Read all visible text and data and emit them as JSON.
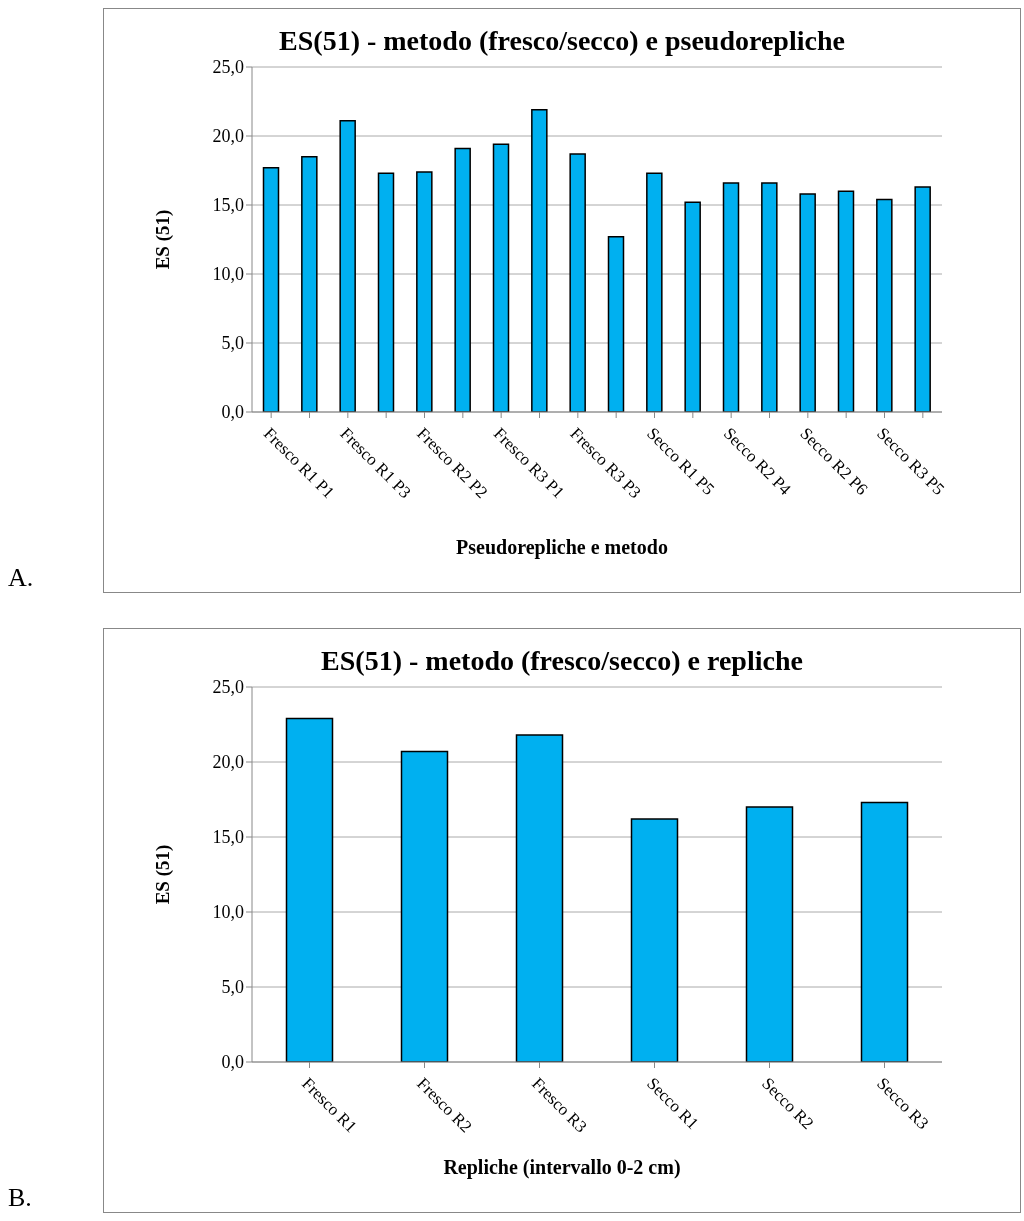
{
  "chart_data": [
    {
      "type": "bar",
      "title": "ES(51) - metodo (fresco/secco) e pseudorepliche",
      "xlabel": "Pseudorepliche e metodo",
      "ylabel": "ES (51)",
      "annotations": [
        "A."
      ],
      "categories": [
        "Fresco R1 P1",
        null,
        "Fresco R1 P3",
        null,
        "Fresco R2 P2",
        null,
        "Fresco R3 P1",
        null,
        "Fresco R3 P3",
        null,
        "Secco R1 P5",
        null,
        "Secco R2 P4",
        null,
        "Secco R2 P6",
        null,
        "Secco R3 P5",
        null
      ],
      "values": [
        17.7,
        18.5,
        21.1,
        17.3,
        17.4,
        19.1,
        19.4,
        21.9,
        18.7,
        12.7,
        17.3,
        15.2,
        16.6,
        16.6,
        15.8,
        16.0,
        15.4,
        16.3
      ],
      "color": "#00b0f0",
      "ylim": [
        0,
        25
      ],
      "yticks": [
        {
          "value": 0,
          "label": "0,0"
        },
        {
          "value": 5,
          "label": "5,0"
        },
        {
          "value": 10,
          "label": "10,0"
        },
        {
          "value": 15,
          "label": "15,0"
        },
        {
          "value": 20,
          "label": "20,0"
        },
        {
          "value": 25,
          "label": "25,0"
        }
      ],
      "grid": "y",
      "legend": false
    },
    {
      "type": "bar",
      "title": "ES(51) - metodo (fresco/secco) e repliche",
      "xlabel": "Repliche (intervallo 0-2 cm)",
      "ylabel": "ES (51)",
      "annotations": [
        "B."
      ],
      "categories": [
        "Fresco R1",
        "Fresco R2",
        "Fresco R3",
        "Secco R1",
        "Secco R2",
        "Secco R3"
      ],
      "values": [
        22.9,
        20.7,
        21.8,
        16.2,
        17.0,
        17.3
      ],
      "color": "#00b0f0",
      "ylim": [
        0,
        25
      ],
      "yticks": [
        {
          "value": 0,
          "label": "0,0"
        },
        {
          "value": 5,
          "label": "5,0"
        },
        {
          "value": 10,
          "label": "10,0"
        },
        {
          "value": 15,
          "label": "15,0"
        },
        {
          "value": 20,
          "label": "20,0"
        },
        {
          "value": 25,
          "label": "25,0"
        }
      ],
      "grid": "y",
      "legend": false
    }
  ]
}
